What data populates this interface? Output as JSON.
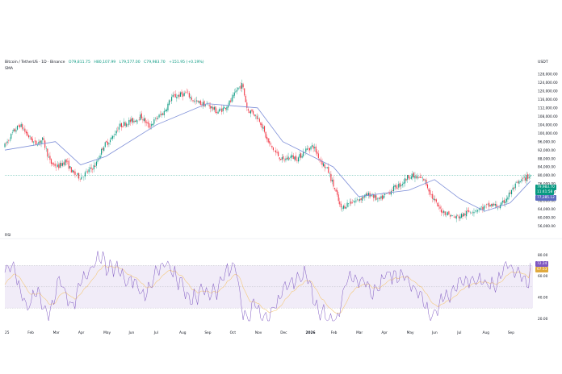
{
  "header": {
    "symbol": "Bitcoin / TetherUS · 1D · Binance",
    "open": "O79,811.75",
    "high": "H80,107.99",
    "low": "L79,577.00",
    "close": "C79,983.70",
    "change": "+151.95 (+0.19%)",
    "indicator": "SMA",
    "currency": "USDT"
  },
  "rsi_panel": {
    "label": "RSI"
  },
  "badges": {
    "price": "79,983.70",
    "countdown": "11:41:58",
    "sma": "77,285.12",
    "rsi": "72.24",
    "rsi_ma": "67.53"
  },
  "colors": {
    "up": "#089981",
    "down": "#f23645",
    "sma": "#7e8fd8",
    "rsi": "#7e57c2",
    "rsi_ma": "#f4c87a",
    "rsi_band": "#ede7f6",
    "price_line": "#089981",
    "sma_badge": "#5c6bc0"
  },
  "chart_data": [
    {
      "type": "candlestick",
      "title": "Bitcoin / TetherUS · 1D · Binance",
      "x_ticks": [
        "25",
        "Feb",
        "Mar",
        "Apr",
        "May",
        "Jun",
        "Jul",
        "Aug",
        "Sep",
        "Oct",
        "Nov",
        "Dec",
        "2026",
        "Feb",
        "Mar",
        "Apr",
        "May",
        "Jun",
        "Jul",
        "Aug",
        "Sep"
      ],
      "y_ticks": [
        56000,
        60000,
        64000,
        68000,
        72000,
        76000,
        80000,
        84000,
        88000,
        92000,
        96000,
        100000,
        104000,
        108000,
        112000,
        116000,
        120000,
        124000,
        128000
      ],
      "y_tick_labels": [
        "56,000.00",
        "60,000.00",
        "64,000.00",
        "68,000.00",
        "72,000.00",
        "76,000.00",
        "80,000.00",
        "84,000.00",
        "88,000.00",
        "92,000.00",
        "96,000.00",
        "100,000.00",
        "104,000.00",
        "108,000.00",
        "112,000.00",
        "116,000.00",
        "120,000.00",
        "124,000.00",
        "128,000.00"
      ],
      "ylim": [
        53500,
        129500
      ],
      "scale": "linear",
      "grid": false,
      "price_path": {
        "x_month_index": [
          0,
          0.3,
          0.6,
          0.9,
          1.2,
          1.5,
          1.8,
          2.1,
          2.4,
          2.7,
          3.0,
          3.3,
          3.6,
          3.9,
          4.2,
          4.5,
          4.8,
          5.1,
          5.4,
          5.7,
          6.0,
          6.3,
          6.6,
          6.9,
          7.2,
          7.5,
          7.8,
          8.1,
          8.4,
          8.7,
          9.0,
          9.2,
          9.4,
          9.6,
          9.8,
          10.1,
          10.4,
          10.7,
          11.0,
          11.3,
          11.6,
          11.9,
          12.2,
          12.5,
          12.8,
          13.1,
          13.3,
          13.6,
          13.9,
          14.2,
          14.5,
          14.8,
          15.1,
          15.4,
          15.7,
          16.0,
          16.3,
          16.6,
          16.9,
          17.2,
          17.5,
          17.8,
          18.1,
          18.4,
          18.7,
          19.0,
          19.3,
          19.6,
          19.9,
          20.2,
          20.5,
          20.8
        ],
        "close": [
          94000,
          100000,
          104000,
          99000,
          95000,
          97000,
          86000,
          84000,
          87000,
          81000,
          79000,
          82000,
          85000,
          94000,
          97000,
          103000,
          105000,
          106000,
          108000,
          103000,
          107000,
          110000,
          117000,
          118000,
          119000,
          115000,
          114000,
          113000,
          110000,
          112000,
          116000,
          121000,
          123000,
          111000,
          110000,
          106000,
          96000,
          91000,
          87000,
          89000,
          88000,
          92000,
          94000,
          87000,
          82000,
          72000,
          64000,
          67000,
          68000,
          70000,
          71000,
          68000,
          71000,
          74000,
          76000,
          80000,
          79000,
          78000,
          70000,
          64000,
          62000,
          60000,
          61000,
          63000,
          64000,
          65000,
          66000,
          65000,
          70000,
          75000,
          78000,
          80000
        ]
      },
      "last_price": 79983.7,
      "series": [
        {
          "name": "SMA",
          "summary_points": [
            [
              0,
              92000
            ],
            [
              2,
              96000
            ],
            [
              3,
              85000
            ],
            [
              4,
              89000
            ],
            [
              6,
              104000
            ],
            [
              8,
              114000
            ],
            [
              9,
              113000
            ],
            [
              10,
              112000
            ],
            [
              11,
              96000
            ],
            [
              12,
              90000
            ],
            [
              13,
              84000
            ],
            [
              14,
              70000
            ],
            [
              16,
              73000
            ],
            [
              17,
              78000
            ],
            [
              18,
              69000
            ],
            [
              19,
              63000
            ],
            [
              20,
              67000
            ],
            [
              20.8,
              77285.12
            ]
          ]
        }
      ]
    },
    {
      "type": "line",
      "title": "RSI",
      "y_ticks": [
        20,
        40,
        60,
        80
      ],
      "y_tick_labels": [
        "20.00",
        "40.00",
        "60.00",
        "80.00"
      ],
      "ylim": [
        15,
        90
      ],
      "band": [
        30,
        70
      ],
      "series": [
        {
          "name": "RSI",
          "last": 72.24
        },
        {
          "name": "RSI-based MA",
          "last": 67.53
        }
      ]
    }
  ]
}
